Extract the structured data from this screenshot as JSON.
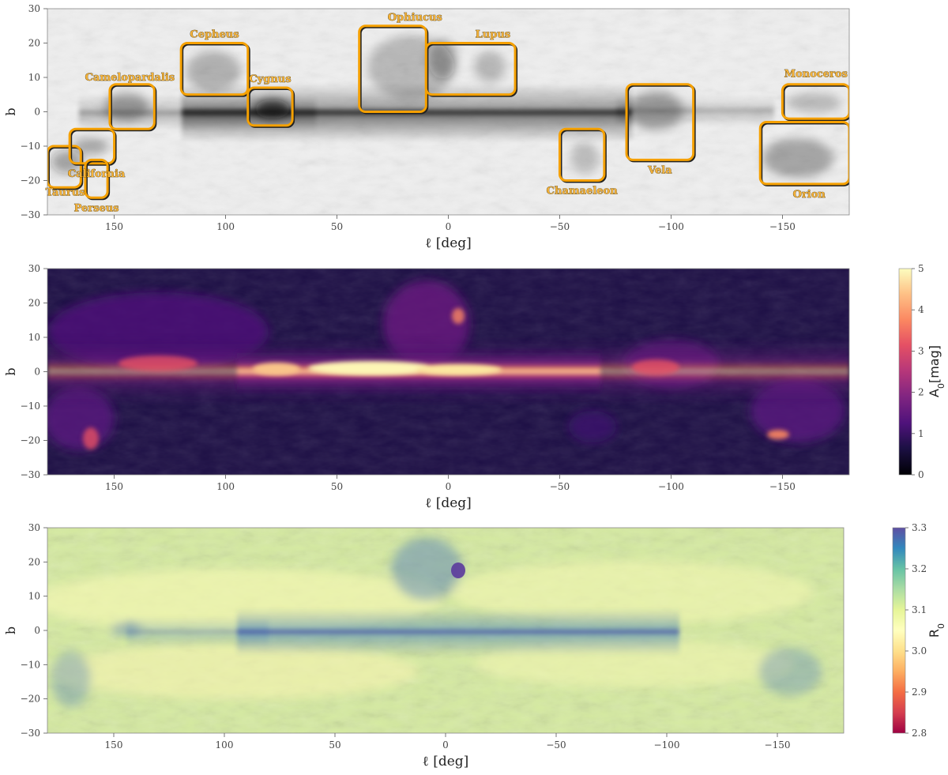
{
  "figure": {
    "panels": [
      {
        "id": "map",
        "ylabel": "b",
        "xlabel": "ℓ [deg]",
        "xticks": [
          150,
          100,
          50,
          0,
          -50,
          -100,
          -150
        ],
        "xtick_labels": [
          "150",
          "100",
          "50",
          "0",
          "−50",
          "−100",
          "−150"
        ],
        "yticks": [
          30,
          20,
          10,
          0,
          -10,
          -20,
          -30
        ],
        "ytick_labels": [
          "30",
          "20",
          "10",
          "0",
          "−10",
          "−20",
          "−30"
        ]
      },
      {
        "id": "A0",
        "ylabel": "b",
        "xlabel": "ℓ [deg]",
        "xticks": [
          150,
          100,
          50,
          0,
          -50,
          -100,
          -150
        ],
        "xtick_labels": [
          "150",
          "100",
          "50",
          "0",
          "−50",
          "−100",
          "−150"
        ],
        "yticks": [
          30,
          20,
          10,
          0,
          -10,
          -20,
          -30
        ],
        "ytick_labels": [
          "30",
          "20",
          "10",
          "0",
          "−10",
          "−20",
          "−30"
        ],
        "colorbar": {
          "label_main": "A",
          "label_sub": "0",
          "label_tail": "[mag]",
          "ticks": [
            5,
            4,
            3,
            2,
            1,
            0
          ],
          "tick_labels": [
            "5",
            "4",
            "3",
            "2",
            "1",
            "0"
          ],
          "range": [
            0,
            5
          ],
          "colormap": "magma"
        }
      },
      {
        "id": "R0",
        "ylabel": "b",
        "xlabel": "ℓ [deg]",
        "xticks": [
          150,
          100,
          50,
          0,
          -50,
          -100,
          -150
        ],
        "xtick_labels": [
          "150",
          "100",
          "50",
          "0",
          "−50",
          "−100",
          "−150"
        ],
        "yticks": [
          30,
          20,
          10,
          0,
          -10,
          -20,
          -30
        ],
        "ytick_labels": [
          "30",
          "20",
          "10",
          "0",
          "−10",
          "−20",
          "−30"
        ],
        "colorbar": {
          "label_main": "R",
          "label_sub": "0",
          "label_tail": "",
          "ticks": [
            3.3,
            3.2,
            3.1,
            3.0,
            2.9,
            2.8
          ],
          "tick_labels": [
            "3.3",
            "3.2",
            "3.1",
            "3.0",
            "2.9",
            "2.8"
          ],
          "range": [
            2.8,
            3.3
          ],
          "colormap": "Spectral"
        }
      }
    ]
  },
  "chart_data": [
    {
      "type": "heatmap",
      "title": "",
      "xlabel": "ℓ [deg]",
      "ylabel": "b",
      "xlim": [
        180,
        -180
      ],
      "ylim": [
        -30,
        30
      ],
      "colormap": "gray_r",
      "regions": [
        {
          "name": "Taurus",
          "l": [
            180,
            165
          ],
          "b": [
            -22,
            -10
          ],
          "label_l": 172,
          "label_b": -23.5
        },
        {
          "name": "California",
          "l": [
            170,
            150
          ],
          "b": [
            -15,
            -5
          ],
          "label_l": 158,
          "label_b": -18
        },
        {
          "name": "Perseus",
          "l": [
            163,
            153
          ],
          "b": [
            -25,
            -14
          ],
          "label_l": 158,
          "label_b": -28
        },
        {
          "name": "Camelopardalis",
          "l": [
            152,
            132
          ],
          "b": [
            -5,
            8
          ],
          "label_l": 143,
          "label_b": 10
        },
        {
          "name": "Cepheus",
          "l": [
            120,
            90
          ],
          "b": [
            5,
            20
          ],
          "label_l": 105,
          "label_b": 22.5
        },
        {
          "name": "Cygnus",
          "l": [
            90,
            70
          ],
          "b": [
            -4,
            7
          ],
          "label_l": 80,
          "label_b": 9.5
        },
        {
          "name": "Ophiucus",
          "l": [
            40,
            10
          ],
          "b": [
            0,
            25
          ],
          "label_l": 15,
          "label_b": 27.5
        },
        {
          "name": "Lupus",
          "l": [
            10,
            -30
          ],
          "b": [
            5,
            20
          ],
          "label_l": -20,
          "label_b": 22.5
        },
        {
          "name": "Chamaeleon",
          "l": [
            -50,
            -70
          ],
          "b": [
            -20,
            -5
          ],
          "label_l": -60,
          "label_b": -23
        },
        {
          "name": "Vela",
          "l": [
            -80,
            -110
          ],
          "b": [
            -14,
            8
          ],
          "label_l": -95,
          "label_b": -17
        },
        {
          "name": "Monoceros",
          "l": [
            -150,
            -180
          ],
          "b": [
            -2,
            8
          ],
          "label_l": -165,
          "label_b": 11
        },
        {
          "name": "Orion",
          "l": [
            -140,
            -180
          ],
          "b": [
            -21,
            -3
          ],
          "label_l": -162,
          "label_b": -24
        }
      ]
    },
    {
      "type": "heatmap",
      "title": "",
      "xlabel": "ℓ [deg]",
      "ylabel": "b",
      "xlim": [
        180,
        -180
      ],
      "ylim": [
        -30,
        30
      ],
      "zlabel": "A0[mag]",
      "zlim": [
        0,
        5
      ],
      "colormap": "magma"
    },
    {
      "type": "heatmap",
      "title": "",
      "xlabel": "ℓ [deg]",
      "ylabel": "b",
      "xlim": [
        180,
        -180
      ],
      "ylim": [
        -30,
        30
      ],
      "zlabel": "R0",
      "zlim": [
        2.8,
        3.3
      ],
      "colormap": "Spectral"
    }
  ]
}
